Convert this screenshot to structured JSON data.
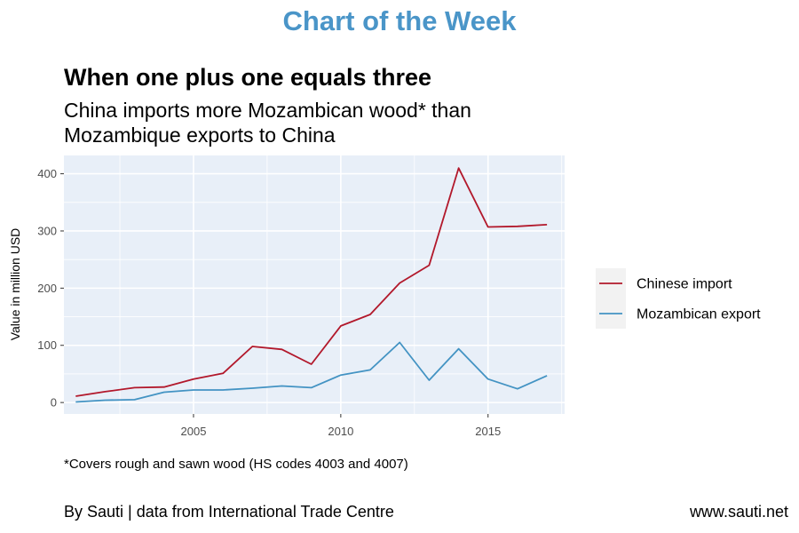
{
  "header": {
    "banner": "Chart of the Week"
  },
  "footer": {
    "footnote": "*Covers rough and sawn wood (HS codes 4003 and 4007)",
    "credit": "By Sauti | data from International Trade Centre",
    "website": "www.sauti.net"
  },
  "chart_data": {
    "type": "line",
    "title": "When one plus one equals three",
    "subtitle": "China imports more Mozambican wood* than Mozambique exports to China",
    "xlabel": "",
    "ylabel": "Value in million USD",
    "xlim": [
      2000.6,
      2017.6
    ],
    "ylim": [
      -20,
      432
    ],
    "x_ticks": [
      2005,
      2010,
      2015
    ],
    "y_ticks": [
      0,
      100,
      200,
      300,
      400
    ],
    "grid": true,
    "legend": "right",
    "x": [
      2001,
      2002,
      2003,
      2004,
      2005,
      2006,
      2007,
      2008,
      2009,
      2010,
      2011,
      2012,
      2013,
      2014,
      2015,
      2016,
      2017
    ],
    "series": [
      {
        "name": "Chinese import",
        "color": "#b2182b",
        "values": [
          11,
          19,
          26,
          27,
          41,
          51,
          98,
          93,
          67,
          134,
          154,
          209,
          240,
          410,
          307,
          308,
          311
        ]
      },
      {
        "name": "Mozambican export",
        "color": "#4393c3",
        "values": [
          1,
          4,
          5,
          18,
          22,
          22,
          25,
          29,
          26,
          48,
          57,
          105,
          39,
          94,
          41,
          24,
          47
        ]
      }
    ],
    "colors": {
      "panel": "#e8eff8",
      "grid": "#ffffff",
      "legend_key": "#f2f2f2"
    }
  }
}
